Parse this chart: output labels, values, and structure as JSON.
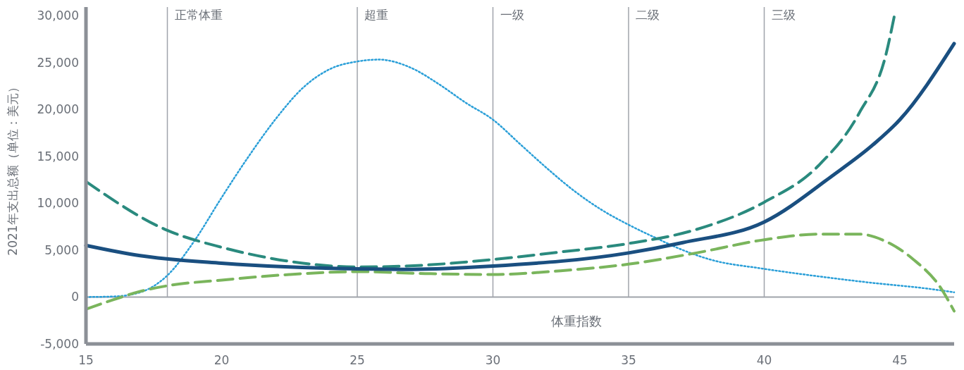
{
  "chart_data": {
    "type": "line",
    "xlabel": "体重指数",
    "ylabel": "2021年支出总额（单位：美元）",
    "xlim": [
      15,
      47
    ],
    "xticks": [
      15,
      20,
      25,
      30,
      35,
      40,
      45
    ],
    "ylim": [
      -5000,
      30900
    ],
    "yticks": [
      {
        "value": -5000,
        "label": "-5,000"
      },
      0,
      {
        "value": 5000,
        "label": "5,000"
      },
      {
        "value": 10000,
        "label": "10,000"
      },
      {
        "value": 15000,
        "label": "15,000"
      },
      {
        "value": 20000,
        "label": "20,000"
      },
      {
        "value": 25000,
        "label": "25,000"
      },
      {
        "value": 30000,
        "label": "30,000"
      }
    ],
    "grid": false,
    "marker": "none",
    "ref_lines": [
      {
        "axis": "y",
        "value": 0,
        "label": null,
        "color": "#a0a4ab"
      },
      {
        "axis": "x",
        "value": 18,
        "label": "正常体重",
        "color": "#a0a4ab"
      },
      {
        "axis": "x",
        "value": 25,
        "label": "超重",
        "color": "#a0a4ab"
      },
      {
        "axis": "x",
        "value": 30,
        "label": "一级",
        "color": "#a0a4ab"
      },
      {
        "axis": "x",
        "value": 35,
        "label": "二级",
        "color": "#a0a4ab"
      },
      {
        "axis": "x",
        "value": 40,
        "label": "三级",
        "color": "#a0a4ab"
      }
    ],
    "series": [
      {
        "color": "#2a9fd8",
        "line_style": "dotted",
        "x": [
          15,
          16,
          17,
          18,
          19,
          20,
          21,
          22,
          23,
          24,
          25,
          25.8,
          27,
          28,
          29,
          30,
          31,
          32,
          33,
          34,
          35,
          36,
          37,
          38,
          40,
          42,
          44,
          46,
          47
        ],
        "values": [
          0,
          50,
          500,
          2300,
          6000,
          10600,
          15000,
          19000,
          22300,
          24300,
          25100,
          25300,
          24400,
          22700,
          20700,
          18900,
          16300,
          13700,
          11300,
          9300,
          7700,
          6300,
          5000,
          4000,
          3000,
          2200,
          1500,
          900,
          500
        ]
      },
      {
        "color": "#7ab55c",
        "line_style": "dashed",
        "x": [
          15,
          16,
          17,
          18,
          20,
          22.5,
          25,
          27.5,
          30,
          32.5,
          35,
          37.5,
          40,
          42,
          43.5,
          44.5,
          45.5,
          46.5,
          47
        ],
        "values": [
          -1300,
          -300,
          600,
          1200,
          1800,
          2400,
          2700,
          2500,
          2400,
          2800,
          3500,
          4700,
          6100,
          6700,
          6700,
          5900,
          4000,
          1000,
          -1500
        ]
      },
      {
        "color": "#2a8a7e",
        "line_style": "dashed",
        "x": [
          15,
          18,
          20,
          22.5,
          25,
          27.5,
          30,
          32.5,
          35,
          37.5,
          40,
          42,
          43.5,
          44.5,
          44.8
        ],
        "values": [
          12300,
          7100,
          5300,
          3800,
          3200,
          3400,
          4000,
          4800,
          5700,
          7200,
          10100,
          14000,
          19600,
          26000,
          30000
        ]
      },
      {
        "color": "#1a4f80",
        "line_style": "solid",
        "x": [
          15,
          17,
          20,
          25,
          27,
          30,
          35,
          37,
          40,
          42.5,
          44,
          45,
          47
        ],
        "values": [
          5500,
          4400,
          3600,
          3000,
          2950,
          3300,
          4700,
          5800,
          8000,
          12900,
          16200,
          18900,
          27000
        ]
      }
    ]
  }
}
